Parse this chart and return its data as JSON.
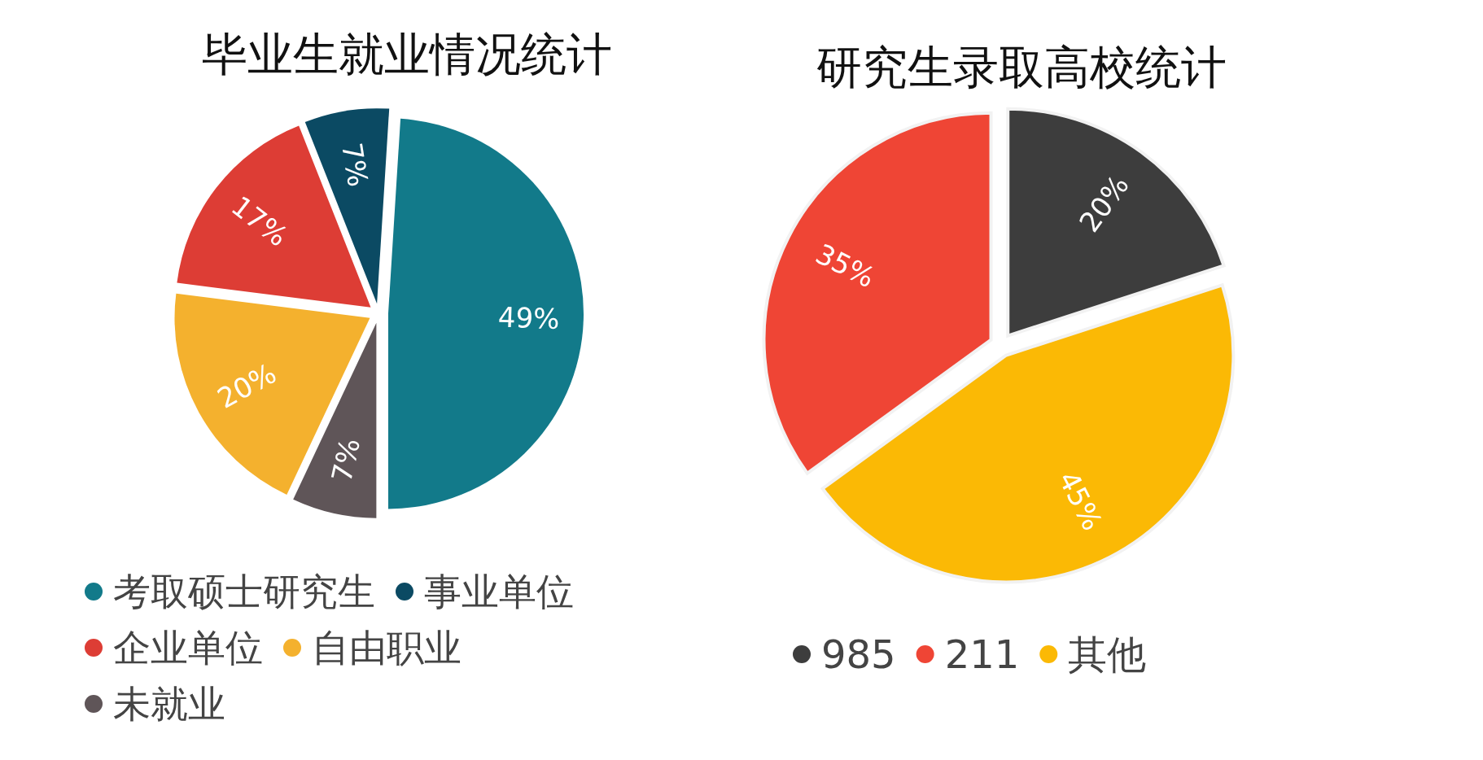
{
  "chart_data": [
    {
      "type": "pie",
      "title": "毕业生就业情况统计",
      "categories": [
        "考取硕士研究生",
        "事业单位",
        "企业单位",
        "自由职业",
        "未就业"
      ],
      "values": [
        49,
        7,
        17,
        20,
        7
      ],
      "value_labels": [
        "49%",
        "7%",
        "17%",
        "20%",
        "7%"
      ],
      "colors": [
        "#127a8a",
        "#0b4a63",
        "#dd3d35",
        "#f4b12e",
        "#5f5558"
      ],
      "legend": "bottom"
    },
    {
      "type": "pie",
      "title": "研究生录取高校统计",
      "categories": [
        "985",
        "211",
        "其他"
      ],
      "values": [
        20,
        35,
        45
      ],
      "value_labels": [
        "20%",
        "35%",
        "45%"
      ],
      "colors": [
        "#3d3d3d",
        "#ef4535",
        "#fbb905"
      ],
      "legend": "bottom"
    }
  ]
}
